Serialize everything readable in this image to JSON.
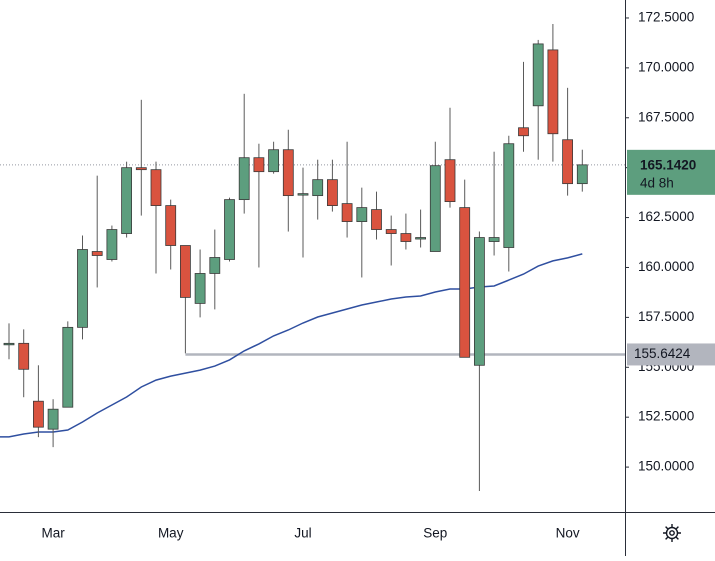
{
  "chart_data": {
    "type": "candlestick",
    "categories": [
      null,
      null,
      null,
      "Mar",
      null,
      null,
      null,
      null,
      null,
      null,
      null,
      "May",
      null,
      null,
      null,
      null,
      null,
      null,
      null,
      null,
      "Jul",
      null,
      null,
      null,
      null,
      null,
      null,
      null,
      null,
      "Sep",
      null,
      null,
      null,
      null,
      null,
      null,
      null,
      null,
      "Nov",
      null
    ],
    "open": [
      156.2,
      156.2,
      153.3,
      151.9,
      153.0,
      157.0,
      160.8,
      160.4,
      161.7,
      165.0,
      164.9,
      163.1,
      161.1,
      158.2,
      159.7,
      160.4,
      163.4,
      165.5,
      164.8,
      165.9,
      163.7,
      163.6,
      164.4,
      163.2,
      162.3,
      162.9,
      161.9,
      161.7,
      161.5,
      160.8,
      165.4,
      163.0,
      155.1,
      161.3,
      161.0,
      167.0,
      168.1,
      170.9,
      166.4,
      164.2
    ],
    "high": [
      157.2,
      156.9,
      155.1,
      153.4,
      157.3,
      161.6,
      164.6,
      162.1,
      165.3,
      168.4,
      165.3,
      163.4,
      161.1,
      160.9,
      161.9,
      163.5,
      168.7,
      166.2,
      166.3,
      166.9,
      165.0,
      165.4,
      165.4,
      166.3,
      164.0,
      163.8,
      162.6,
      162.7,
      162.9,
      166.3,
      168.0,
      164.4,
      161.8,
      165.8,
      166.6,
      170.3,
      171.4,
      172.2,
      169.0,
      165.9
    ],
    "low": [
      155.4,
      153.5,
      151.5,
      151.0,
      153.0,
      156.4,
      159.0,
      160.3,
      161.5,
      162.6,
      159.7,
      159.9,
      155.7,
      157.5,
      157.9,
      160.3,
      162.7,
      160.0,
      164.7,
      161.8,
      160.5,
      162.4,
      162.8,
      161.5,
      159.5,
      161.4,
      160.1,
      160.9,
      161.0,
      160.8,
      163.0,
      155.5,
      148.8,
      160.6,
      159.8,
      165.8,
      165.4,
      165.3,
      163.6,
      163.8
    ],
    "close": [
      156.2,
      154.9,
      152.0,
      152.9,
      157.0,
      160.9,
      160.6,
      161.9,
      165.0,
      164.9,
      163.1,
      161.1,
      158.5,
      159.7,
      160.5,
      163.4,
      165.5,
      164.8,
      165.9,
      163.6,
      163.7,
      164.4,
      163.1,
      162.3,
      163.0,
      161.9,
      161.7,
      161.3,
      161.5,
      165.1,
      163.3,
      155.5,
      161.5,
      161.5,
      166.2,
      166.6,
      171.2,
      166.7,
      164.2,
      165.142
    ],
    "up_color": "#5d9e7e",
    "down_color": "#d9533f",
    "ma": {
      "color": "#2f4fa0",
      "values": [
        151.51,
        151.66,
        151.76,
        151.76,
        151.86,
        152.26,
        152.71,
        153.11,
        153.51,
        154.01,
        154.36,
        154.56,
        154.71,
        154.86,
        155.06,
        155.37,
        155.82,
        156.17,
        156.57,
        156.87,
        157.22,
        157.52,
        157.72,
        157.92,
        158.12,
        158.27,
        158.42,
        158.52,
        158.57,
        158.77,
        158.92,
        158.92,
        159.02,
        159.07,
        159.37,
        159.67,
        160.07,
        160.33,
        160.48,
        160.68
      ]
    },
    "hline": {
      "value": 155.6424,
      "start": 12,
      "color": "#b2b5be"
    },
    "last_price": {
      "value": 165.142,
      "label": "165.1420",
      "countdown": "4d 8h",
      "color": "#5d9e7e"
    },
    "ylim": [
      147.75,
      173.4
    ],
    "yticks": [
      {
        "value": 150,
        "label": "150.0000"
      },
      {
        "value": 152.5,
        "label": "152.5000"
      },
      {
        "value": 155,
        "label": "155.0000"
      },
      {
        "value": 157.5,
        "label": "157.5000"
      },
      {
        "value": 160,
        "label": "160.0000"
      },
      {
        "value": 162.5,
        "label": "162.5000"
      },
      {
        "value": 165,
        "label": "165.0000"
      },
      {
        "value": 167.5,
        "label": "167.5000"
      },
      {
        "value": 170,
        "label": "170.0000"
      },
      {
        "value": 172.5,
        "label": "172.5000"
      }
    ]
  }
}
